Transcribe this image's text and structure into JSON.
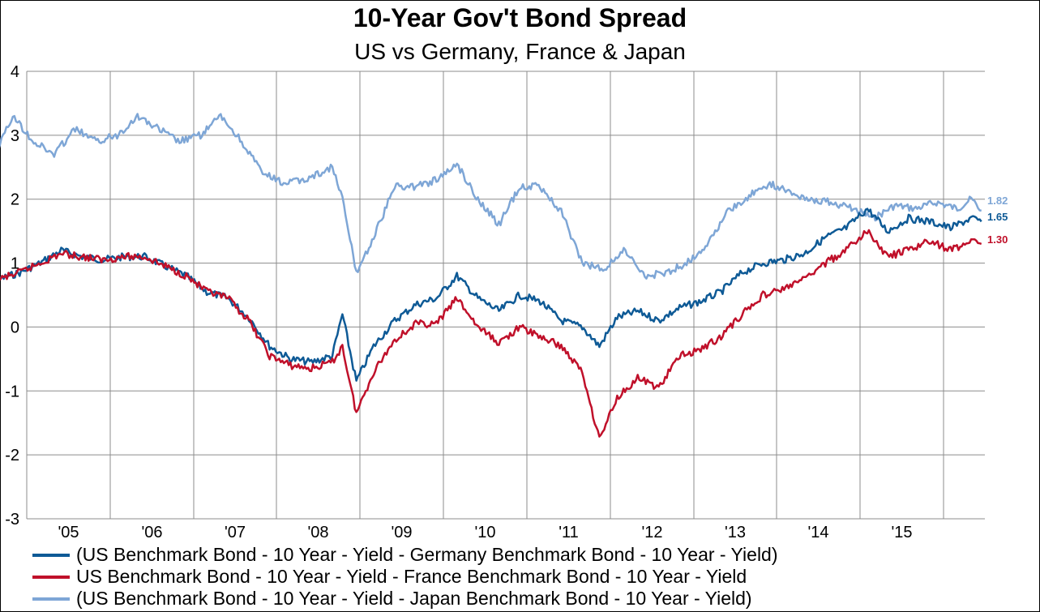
{
  "chart_data": {
    "type": "line",
    "title": "10-Year Gov't Bond Spread",
    "subtitle": "US vs Germany, France & Japan",
    "xlabel": "",
    "ylabel": "",
    "ylim": [
      -3,
      4
    ],
    "yticks": [
      "4",
      "3",
      "2",
      "1",
      "0",
      "-1",
      "-2",
      "-3"
    ],
    "xticks": [
      "'05",
      "'06",
      "'07",
      "'08",
      "'09",
      "'10",
      "'11",
      "'12",
      "'13",
      "'14",
      "'15"
    ],
    "grid": true,
    "legend_position": "bottom",
    "series": [
      {
        "name": "(US Benchmark Bond - 10 Year - Yield - Germany Benchmark Bond - 10 Year - Yield)",
        "color": "#0e5a96",
        "end_label": "1.65",
        "points": [
          [
            "2004-06-01",
            0.55
          ],
          [
            "2004-09-01",
            0.75
          ],
          [
            "2004-12-01",
            0.85
          ],
          [
            "2005-03-01",
            1.0
          ],
          [
            "2005-06-01",
            1.2
          ],
          [
            "2005-09-01",
            1.1
          ],
          [
            "2005-12-01",
            1.05
          ],
          [
            "2006-03-01",
            1.1
          ],
          [
            "2006-06-01",
            1.1
          ],
          [
            "2006-09-01",
            0.95
          ],
          [
            "2006-12-01",
            0.8
          ],
          [
            "2007-03-01",
            0.55
          ],
          [
            "2007-06-01",
            0.45
          ],
          [
            "2007-09-01",
            0.15
          ],
          [
            "2007-12-01",
            -0.3
          ],
          [
            "2008-03-01",
            -0.5
          ],
          [
            "2008-06-01",
            -0.55
          ],
          [
            "2008-09-01",
            -0.45
          ],
          [
            "2008-10-15",
            0.2
          ],
          [
            "2008-12-15",
            -0.85
          ],
          [
            "2009-03-01",
            -0.3
          ],
          [
            "2009-06-01",
            0.1
          ],
          [
            "2009-09-01",
            0.35
          ],
          [
            "2009-12-01",
            0.45
          ],
          [
            "2010-03-01",
            0.8
          ],
          [
            "2010-06-01",
            0.45
          ],
          [
            "2010-09-01",
            0.25
          ],
          [
            "2010-12-01",
            0.5
          ],
          [
            "2011-03-01",
            0.4
          ],
          [
            "2011-06-01",
            0.1
          ],
          [
            "2011-09-01",
            0.0
          ],
          [
            "2011-11-15",
            -0.3
          ],
          [
            "2012-02-01",
            0.15
          ],
          [
            "2012-05-01",
            0.25
          ],
          [
            "2012-08-01",
            0.1
          ],
          [
            "2012-11-01",
            0.3
          ],
          [
            "2013-02-01",
            0.4
          ],
          [
            "2013-05-01",
            0.55
          ],
          [
            "2013-08-01",
            0.85
          ],
          [
            "2013-11-01",
            1.0
          ],
          [
            "2014-02-01",
            1.05
          ],
          [
            "2014-05-01",
            1.15
          ],
          [
            "2014-08-01",
            1.4
          ],
          [
            "2014-11-01",
            1.55
          ],
          [
            "2015-02-01",
            1.85
          ],
          [
            "2015-05-01",
            1.5
          ],
          [
            "2015-08-01",
            1.7
          ],
          [
            "2015-11-01",
            1.65
          ],
          [
            "2016-02-01",
            1.55
          ],
          [
            "2016-05-01",
            1.7
          ],
          [
            "2016-06-15",
            1.65
          ]
        ]
      },
      {
        "name": "US Benchmark Bond - 10 Year - Yield - France Benchmark Bond - 10 Year - Yield",
        "color": "#c0102a",
        "end_label": "1.30",
        "points": [
          [
            "2004-06-01",
            0.6
          ],
          [
            "2004-09-01",
            0.75
          ],
          [
            "2004-12-01",
            0.85
          ],
          [
            "2005-03-01",
            1.0
          ],
          [
            "2005-06-01",
            1.15
          ],
          [
            "2005-09-01",
            1.1
          ],
          [
            "2005-12-01",
            1.05
          ],
          [
            "2006-03-01",
            1.1
          ],
          [
            "2006-06-01",
            1.1
          ],
          [
            "2006-09-01",
            0.95
          ],
          [
            "2006-12-01",
            0.8
          ],
          [
            "2007-03-01",
            0.55
          ],
          [
            "2007-06-01",
            0.45
          ],
          [
            "2007-09-01",
            0.1
          ],
          [
            "2007-12-01",
            -0.45
          ],
          [
            "2008-03-01",
            -0.6
          ],
          [
            "2008-06-01",
            -0.65
          ],
          [
            "2008-09-01",
            -0.55
          ],
          [
            "2008-10-15",
            -0.3
          ],
          [
            "2008-12-15",
            -1.35
          ],
          [
            "2009-03-01",
            -0.7
          ],
          [
            "2009-06-01",
            -0.2
          ],
          [
            "2009-09-01",
            0.05
          ],
          [
            "2009-12-01",
            0.05
          ],
          [
            "2010-03-01",
            0.45
          ],
          [
            "2010-06-01",
            0.0
          ],
          [
            "2010-09-01",
            -0.25
          ],
          [
            "2010-12-01",
            0.0
          ],
          [
            "2011-03-01",
            -0.15
          ],
          [
            "2011-06-01",
            -0.3
          ],
          [
            "2011-09-01",
            -0.7
          ],
          [
            "2011-11-15",
            -1.75
          ],
          [
            "2012-02-01",
            -1.1
          ],
          [
            "2012-05-01",
            -0.8
          ],
          [
            "2012-08-01",
            -0.95
          ],
          [
            "2012-11-01",
            -0.45
          ],
          [
            "2013-02-01",
            -0.35
          ],
          [
            "2013-05-01",
            -0.15
          ],
          [
            "2013-08-01",
            0.2
          ],
          [
            "2013-11-01",
            0.5
          ],
          [
            "2014-02-01",
            0.6
          ],
          [
            "2014-05-01",
            0.75
          ],
          [
            "2014-08-01",
            1.0
          ],
          [
            "2014-11-01",
            1.2
          ],
          [
            "2015-02-01",
            1.5
          ],
          [
            "2015-05-01",
            1.1
          ],
          [
            "2015-08-01",
            1.2
          ],
          [
            "2015-11-01",
            1.35
          ],
          [
            "2016-02-01",
            1.2
          ],
          [
            "2016-05-01",
            1.35
          ],
          [
            "2016-06-15",
            1.3
          ]
        ]
      },
      {
        "name": "(US Benchmark Bond - 10 Year - Yield - Japan Benchmark Bond - 10 Year - Yield)",
        "color": "#7ea6d6",
        "end_label": "1.82",
        "points": [
          [
            "2004-06-01",
            2.9
          ],
          [
            "2004-08-01",
            2.6
          ],
          [
            "2004-11-01",
            3.3
          ],
          [
            "2005-02-01",
            2.9
          ],
          [
            "2005-05-01",
            2.7
          ],
          [
            "2005-08-01",
            3.1
          ],
          [
            "2005-11-01",
            2.9
          ],
          [
            "2006-02-01",
            3.0
          ],
          [
            "2006-05-01",
            3.3
          ],
          [
            "2006-08-01",
            3.1
          ],
          [
            "2006-11-01",
            2.9
          ],
          [
            "2007-02-01",
            3.0
          ],
          [
            "2007-05-01",
            3.3
          ],
          [
            "2007-08-01",
            2.9
          ],
          [
            "2007-11-01",
            2.4
          ],
          [
            "2008-02-01",
            2.25
          ],
          [
            "2008-05-01",
            2.3
          ],
          [
            "2008-09-01",
            2.5
          ],
          [
            "2008-10-15",
            2.0
          ],
          [
            "2008-12-15",
            0.85
          ],
          [
            "2009-03-01",
            1.4
          ],
          [
            "2009-06-01",
            2.2
          ],
          [
            "2009-09-01",
            2.2
          ],
          [
            "2009-12-01",
            2.3
          ],
          [
            "2010-03-01",
            2.55
          ],
          [
            "2010-06-01",
            2.0
          ],
          [
            "2010-09-01",
            1.6
          ],
          [
            "2010-12-01",
            2.2
          ],
          [
            "2011-03-01",
            2.2
          ],
          [
            "2011-06-01",
            1.8
          ],
          [
            "2011-09-01",
            1.0
          ],
          [
            "2011-12-01",
            0.9
          ],
          [
            "2012-03-01",
            1.2
          ],
          [
            "2012-06-01",
            0.8
          ],
          [
            "2012-09-01",
            0.85
          ],
          [
            "2012-12-01",
            1.0
          ],
          [
            "2013-03-01",
            1.3
          ],
          [
            "2013-06-01",
            1.8
          ],
          [
            "2013-09-01",
            2.05
          ],
          [
            "2013-12-01",
            2.25
          ],
          [
            "2014-03-01",
            2.1
          ],
          [
            "2014-06-01",
            2.0
          ],
          [
            "2014-09-01",
            1.95
          ],
          [
            "2014-12-01",
            1.85
          ],
          [
            "2015-03-01",
            1.7
          ],
          [
            "2015-06-01",
            1.9
          ],
          [
            "2015-09-01",
            1.85
          ],
          [
            "2015-12-01",
            1.95
          ],
          [
            "2016-03-01",
            1.85
          ],
          [
            "2016-05-01",
            2.0
          ],
          [
            "2016-06-15",
            1.82
          ]
        ]
      }
    ]
  }
}
